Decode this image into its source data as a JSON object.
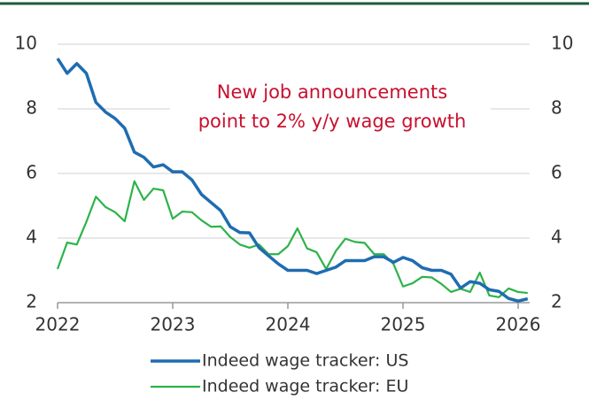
{
  "chart_data": {
    "type": "line",
    "annotation": [
      "New job announcements",
      "point to 2% y/y wage growth"
    ],
    "x": [
      2022,
      2022.083,
      2022.167,
      2022.25,
      2022.333,
      2022.417,
      2022.5,
      2022.583,
      2022.667,
      2022.75,
      2022.833,
      2022.917,
      2023,
      2023.083,
      2023.167,
      2023.25,
      2023.333,
      2023.417,
      2023.5,
      2023.583,
      2023.667,
      2023.75,
      2023.833,
      2023.917,
      2024,
      2024.083,
      2024.167,
      2024.25,
      2024.333,
      2024.417,
      2024.5,
      2024.583,
      2024.667,
      2024.75,
      2024.833,
      2024.917,
      2025,
      2025.083,
      2025.167,
      2025.25,
      2025.333,
      2025.417,
      2025.5,
      2025.583,
      2025.667,
      2025.75,
      2025.833,
      2025.917,
      2026,
      2026.083
    ],
    "series": [
      {
        "name": "Indeed wage tracker: US",
        "color": "#1f6cb0",
        "values": [
          9.56,
          9.1,
          9.4,
          9.1,
          8.2,
          7.9,
          7.7,
          7.4,
          6.66,
          6.5,
          6.2,
          6.27,
          6.05,
          6.05,
          5.8,
          5.35,
          5.1,
          4.85,
          4.35,
          4.17,
          4.16,
          3.7,
          3.45,
          3.2,
          3.0,
          3.0,
          3.0,
          2.9,
          3.0,
          3.1,
          3.3,
          3.3,
          3.3,
          3.42,
          3.42,
          3.25,
          3.4,
          3.3,
          3.08,
          3.0,
          3.0,
          2.88,
          2.45,
          2.65,
          2.6,
          2.4,
          2.35,
          2.13,
          2.05,
          2.12
        ]
      },
      {
        "name": "Indeed wage tracker: EU",
        "color": "#2db34a",
        "values": [
          3.04,
          3.86,
          3.8,
          4.5,
          5.28,
          4.96,
          4.8,
          4.52,
          5.76,
          5.18,
          5.53,
          5.48,
          4.6,
          4.82,
          4.8,
          4.55,
          4.35,
          4.36,
          4.03,
          3.8,
          3.7,
          3.8,
          3.5,
          3.5,
          3.75,
          4.3,
          3.68,
          3.56,
          3.04,
          3.6,
          3.98,
          3.88,
          3.85,
          3.5,
          3.5,
          3.2,
          2.5,
          2.6,
          2.8,
          2.78,
          2.58,
          2.33,
          2.43,
          2.33,
          2.93,
          2.22,
          2.17,
          2.44,
          2.33,
          2.3
        ]
      }
    ],
    "xlim": [
      2022,
      2026.1
    ],
    "xticks": [
      2022,
      2023,
      2024,
      2025,
      2026
    ],
    "ylim": [
      2,
      10
    ],
    "yticks": [
      2,
      4,
      6,
      8,
      10
    ],
    "y2lim": [
      2,
      10
    ],
    "y2ticks": [
      2,
      4,
      6,
      8,
      10
    ],
    "grid": true
  }
}
